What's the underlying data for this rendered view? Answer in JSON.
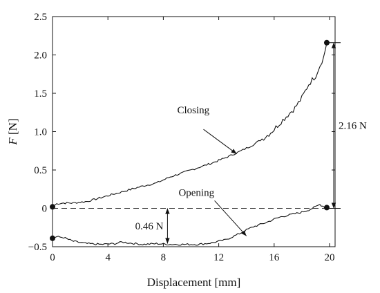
{
  "chart_data": {
    "type": "line",
    "xlabel": "Displacement [mm]",
    "ylabel_italic": "F",
    "ylabel_unit": " [N]",
    "xlim": [
      0,
      20.4
    ],
    "ylim": [
      -0.5,
      2.5
    ],
    "xticks": [
      "0",
      "4",
      "8",
      "12",
      "16",
      "20"
    ],
    "yticks": [
      "−0.5",
      "0",
      "0.5",
      "1.0",
      "1.5",
      "2.0",
      "2.5"
    ],
    "grid": false,
    "series": [
      {
        "name": "Closing",
        "x": [
          0,
          0.3,
          0.8,
          1.5,
          2.5,
          3.5,
          4.5,
          5.5,
          6.5,
          7.5,
          8.5,
          9.5,
          10.5,
          11.5,
          12.5,
          13.5,
          14.5,
          15.5,
          16.0,
          16.5,
          17.0,
          17.5,
          18.0,
          18.5,
          19.0,
          19.3,
          19.6,
          19.8
        ],
        "y": [
          0.02,
          0.06,
          0.07,
          0.07,
          0.09,
          0.14,
          0.19,
          0.24,
          0.29,
          0.33,
          0.41,
          0.47,
          0.53,
          0.59,
          0.66,
          0.74,
          0.83,
          0.95,
          1.03,
          1.13,
          1.22,
          1.31,
          1.44,
          1.62,
          1.73,
          1.86,
          1.99,
          2.16
        ]
      },
      {
        "name": "Opening",
        "x": [
          0,
          0.3,
          0.8,
          1.5,
          2.5,
          3.5,
          4.5,
          5.0,
          5.5,
          6.5,
          7.5,
          8.5,
          9.5,
          10.5,
          11.5,
          12.5,
          13.0,
          13.5,
          14.0,
          14.5,
          15.0,
          15.5,
          16.0,
          16.5,
          17.0,
          17.5,
          18.0,
          18.5,
          19.0,
          19.3,
          19.5,
          19.8
        ],
        "y": [
          -0.39,
          -0.37,
          -0.38,
          -0.43,
          -0.46,
          -0.47,
          -0.46,
          -0.44,
          -0.45,
          -0.47,
          -0.46,
          -0.47,
          -0.47,
          -0.47,
          -0.45,
          -0.41,
          -0.37,
          -0.33,
          -0.28,
          -0.24,
          -0.21,
          -0.18,
          -0.14,
          -0.11,
          -0.09,
          -0.07,
          -0.05,
          -0.02,
          0.02,
          0.05,
          0.03,
          0.01
        ]
      }
    ],
    "reference_lines": [
      {
        "y": 0,
        "style": "dashed"
      }
    ],
    "markers": [
      {
        "x": 0,
        "y": 0.02
      },
      {
        "x": 0,
        "y": -0.39
      },
      {
        "x": 19.8,
        "y": 2.16
      },
      {
        "x": 19.8,
        "y": 0.01
      }
    ],
    "annotations": [
      {
        "id": "closing",
        "text": "Closing",
        "text_x": 9.0,
        "text_y": 1.24,
        "arrow_from": [
          10.9,
          1.03
        ],
        "arrow_to": [
          13.3,
          0.71
        ]
      },
      {
        "id": "opening",
        "text": "Opening",
        "text_x": 9.1,
        "text_y": 0.16,
        "arrow_from": [
          11.7,
          0.1
        ],
        "arrow_to": [
          14.0,
          -0.36
        ]
      },
      {
        "id": "gap",
        "text": "0.46 N",
        "x": 8.3,
        "y1": 0,
        "y2": -0.46
      },
      {
        "id": "peak",
        "text": "2.16 N",
        "x": 20.3,
        "y1": 2.16,
        "y2": 0
      }
    ]
  }
}
